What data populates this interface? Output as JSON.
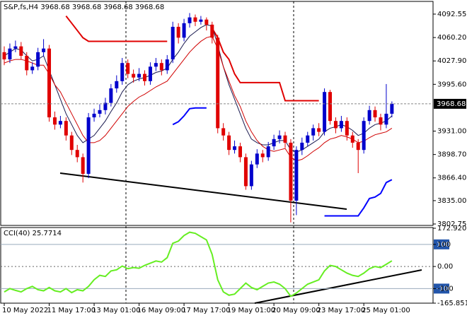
{
  "chart_data": [
    {
      "type": "candlestick",
      "title": "S&P,fs,H4  3968.68 3968.68 3968.68 3968.68",
      "categories": [
        "10 May 2022",
        null,
        null,
        null,
        null,
        null,
        null,
        null,
        "11 May 17:00",
        null,
        null,
        null,
        null,
        null,
        null,
        null,
        "13 May 01:00",
        null,
        null,
        null,
        null,
        null,
        null,
        null,
        "16 May 09:00",
        null,
        null,
        null,
        null,
        null,
        null,
        null,
        "17 May 17:00",
        null,
        null,
        null,
        null,
        null,
        null,
        null,
        "19 May 01:00",
        null,
        null,
        null,
        null,
        null,
        null,
        null,
        "20 May 09:00",
        null,
        null,
        null,
        null,
        null,
        null,
        null,
        "23 May 17:00",
        null,
        null,
        null,
        null,
        null,
        null,
        null,
        "25 May 01:00",
        null,
        null,
        null,
        null,
        null
      ],
      "open": [
        4040,
        4030,
        4045,
        4048,
        4035,
        4015,
        4020,
        4040,
        4045,
        3950,
        3940,
        3945,
        3925,
        3905,
        3895,
        3872,
        3950,
        3955,
        3960,
        3970,
        3990,
        4000,
        4025,
        4010,
        4005,
        4010,
        4000,
        4020,
        4025,
        4015,
        4030,
        4075,
        4060,
        4080,
        4088,
        4082,
        4085,
        4078,
        4060,
        3935,
        3925,
        3905,
        3910,
        3895,
        3855,
        3885,
        3900,
        3895,
        3910,
        3920,
        3925,
        3915,
        3835,
        3905,
        3915,
        3925,
        3935,
        3930,
        3985,
        3945,
        3935,
        3945,
        3925,
        3915,
        3905,
        3945,
        3960,
        3950,
        3940,
        3955
      ],
      "high": [
        4048,
        4052,
        4056,
        4054,
        4040,
        4026,
        4046,
        4058,
        4050,
        3958,
        3952,
        3950,
        3930,
        3912,
        3900,
        3956,
        3962,
        3968,
        3977,
        3996,
        4008,
        4032,
        4030,
        4016,
        4018,
        4015,
        4026,
        4032,
        4030,
        4036,
        4082,
        4080,
        4086,
        4094,
        4092,
        4090,
        4088,
        4082,
        4064,
        3942,
        3930,
        3918,
        3915,
        3900,
        3890,
        3906,
        3905,
        3916,
        3926,
        3932,
        3930,
        3920,
        3910,
        3922,
        3930,
        3940,
        3942,
        3990,
        3988,
        3950,
        3952,
        3950,
        3930,
        3920,
        3950,
        3966,
        3965,
        3955,
        3996,
        3972
      ],
      "low": [
        4022,
        4025,
        4040,
        4030,
        4008,
        4010,
        4015,
        4034,
        3944,
        3933,
        3935,
        3918,
        3898,
        3888,
        3860,
        3866,
        3944,
        3950,
        3954,
        3965,
        3984,
        3995,
        4004,
        3998,
        4000,
        3994,
        3995,
        4014,
        4008,
        4010,
        4025,
        4052,
        4055,
        4074,
        4076,
        4078,
        4070,
        4052,
        3928,
        3918,
        3898,
        3900,
        3888,
        3850,
        3850,
        3880,
        3888,
        3890,
        3905,
        3914,
        3908,
        3805,
        3815,
        3898,
        3910,
        3918,
        3924,
        3925,
        3940,
        3928,
        3930,
        3918,
        3908,
        3873,
        3900,
        3940,
        3944,
        3932,
        3935,
        3950
      ],
      "close": [
        4030,
        4045,
        4048,
        4035,
        4015,
        4020,
        4040,
        4045,
        3950,
        3940,
        3945,
        3925,
        3905,
        3895,
        3872,
        3950,
        3955,
        3960,
        3970,
        3990,
        4000,
        4025,
        4010,
        4005,
        4010,
        4000,
        4020,
        4025,
        4015,
        4030,
        4075,
        4060,
        4080,
        4088,
        4082,
        4085,
        4078,
        4060,
        3935,
        3925,
        3905,
        3910,
        3895,
        3855,
        3885,
        3900,
        3895,
        3910,
        3920,
        3925,
        3915,
        3835,
        3905,
        3915,
        3925,
        3935,
        3930,
        3985,
        3945,
        3935,
        3945,
        3925,
        3915,
        3905,
        3945,
        3960,
        3950,
        3940,
        3955,
        3968.68
      ],
      "up_color": "#0000cc",
      "down_color": "#e00000",
      "series": [
        {
          "color": "#e00000",
          "width": 2,
          "values": [
            null,
            null,
            null,
            null,
            null,
            null,
            null,
            null,
            null,
            null,
            null,
            4090,
            4080,
            4070,
            4060,
            4055,
            4055,
            4055,
            4055,
            4055,
            4055,
            4055,
            4055,
            4055,
            4055,
            4055,
            4055,
            4055,
            4055,
            4055,
            null,
            null,
            null,
            null,
            null,
            null,
            null,
            4073,
            4060,
            4040,
            4030,
            4010,
            3998,
            3998,
            3998,
            3998,
            3998,
            3998,
            3998,
            3998,
            3973,
            3973,
            3973,
            3973,
            3973,
            3973,
            3973,
            null,
            null,
            null,
            null,
            null,
            null,
            null,
            null,
            null,
            null,
            null,
            null,
            null
          ]
        },
        {
          "color": "#0000ff",
          "width": 2,
          "values": [
            null,
            null,
            null,
            null,
            null,
            null,
            null,
            null,
            null,
            null,
            null,
            null,
            null,
            null,
            null,
            null,
            null,
            null,
            null,
            null,
            null,
            null,
            null,
            null,
            null,
            null,
            null,
            null,
            null,
            null,
            3940,
            3944,
            3952,
            3962,
            3963,
            3963,
            3963,
            null,
            null,
            null,
            null,
            null,
            null,
            null,
            null,
            null,
            null,
            null,
            null,
            null,
            null,
            null,
            null,
            null,
            null,
            null,
            null,
            3814,
            3814,
            3814,
            3814,
            3814,
            3814,
            3814,
            3825,
            3838,
            3840,
            3845,
            3860,
            3864
          ]
        },
        {
          "color": "#1a1a50",
          "width": 1,
          "values": [
            4035,
            4040,
            4045,
            4043,
            4035,
            4028,
            4030,
            4035,
            4015,
            3995,
            3975,
            3955,
            3940,
            3925,
            3915,
            3920,
            3925,
            3935,
            3945,
            3958,
            3970,
            3985,
            3995,
            4000,
            4003,
            4005,
            4008,
            4012,
            4014,
            4018,
            4030,
            4040,
            4052,
            4062,
            4068,
            4074,
            4078,
            4076,
            4050,
            4020,
            3995,
            3975,
            3955,
            3935,
            3920,
            3915,
            3912,
            3912,
            3915,
            3918,
            3918,
            3905,
            3902,
            3905,
            3910,
            3915,
            3920,
            3930,
            3935,
            3937,
            3940,
            3937,
            3932,
            3925,
            3928,
            3935,
            3940,
            3942,
            3945,
            3952
          ]
        },
        {
          "color": "#d00000",
          "width": 1,
          "values": [
            4025,
            4028,
            4030,
            4030,
            4028,
            4025,
            4022,
            4022,
            4010,
            3995,
            3985,
            3970,
            3955,
            3940,
            3925,
            3915,
            3915,
            3918,
            3925,
            3935,
            3945,
            3955,
            3965,
            3972,
            3978,
            3982,
            3987,
            3992,
            3996,
            4000,
            4010,
            4020,
            4030,
            4040,
            4048,
            4055,
            4060,
            4062,
            4045,
            4020,
            4000,
            3980,
            3965,
            3945,
            3930,
            3918,
            3910,
            3905,
            3903,
            3905,
            3907,
            3895,
            3890,
            3892,
            3897,
            3903,
            3908,
            3915,
            3920,
            3922,
            3925,
            3923,
            3920,
            3915,
            3917,
            3922,
            3926,
            3928,
            3930,
            3935
          ]
        }
      ],
      "current_price": 3968.68,
      "ylim": [
        3799.8,
        4109.1
      ],
      "yticks": [
        {
          "value": 4092.55,
          "label": "4092.55"
        },
        {
          "value": 4060.2,
          "label": "4060.20"
        },
        {
          "value": 4027.9,
          "label": "4027.90"
        },
        {
          "value": 3995.6,
          "label": "3995.60"
        },
        {
          "value": 3931,
          "label": "3931.00"
        },
        {
          "value": 3898.7,
          "label": "3898.70"
        },
        {
          "value": 3866.4,
          "label": "3866.40"
        },
        {
          "value": 3835,
          "label": "3835.00"
        },
        {
          "value": 3802.75,
          "label": "3802.75"
        }
      ]
    },
    {
      "type": "line",
      "title": "CCI(40) 25.7714",
      "color": "#66ee22",
      "values": [
        -115,
        -100,
        -108,
        -115,
        -100,
        -90,
        -105,
        -110,
        -95,
        -110,
        -115,
        -100,
        -118,
        -105,
        -110,
        -90,
        -60,
        -40,
        -45,
        -20,
        -15,
        2,
        -10,
        -5,
        -8,
        5,
        15,
        25,
        20,
        40,
        105,
        115,
        140,
        155,
        150,
        135,
        120,
        55,
        -60,
        -115,
        -130,
        -125,
        -100,
        -75,
        -95,
        -105,
        -90,
        -75,
        -70,
        -80,
        -100,
        -135,
        -120,
        -100,
        -80,
        -70,
        -60,
        -20,
        5,
        0,
        -15,
        -30,
        -40,
        -45,
        -30,
        -10,
        0,
        -5,
        10,
        25.7714
      ],
      "ylim": [
        -165.8517,
        172.9205
      ],
      "yticks": [
        172.9205,
        100,
        {
          "value": 0,
          "label": "0.00"
        },
        -100,
        -165.8517
      ],
      "levels": [
        100,
        -100
      ]
    }
  ]
}
